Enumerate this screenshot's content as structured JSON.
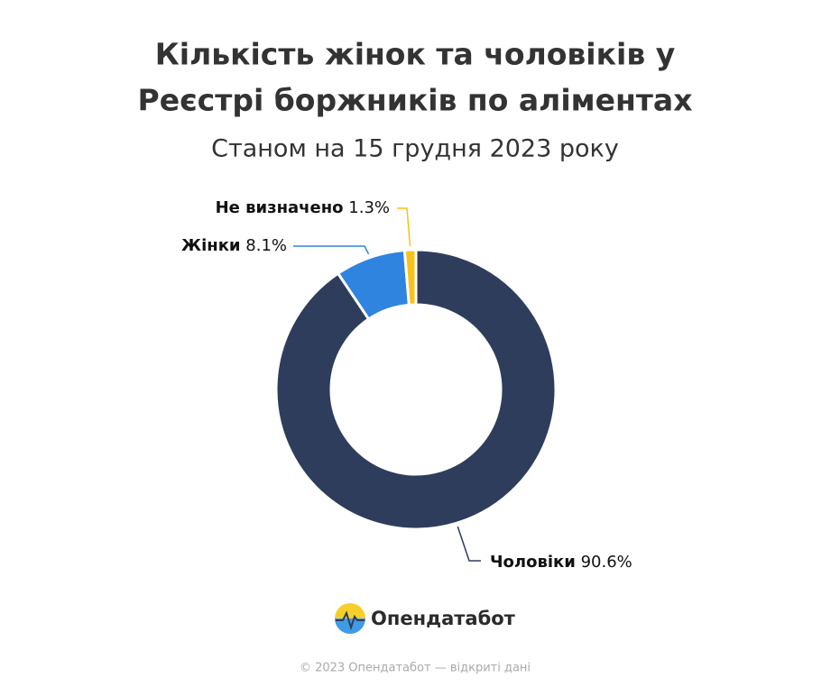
{
  "chart_data": {
    "type": "pie",
    "title": [
      "Кількість жінок та чоловіків у",
      "Реєстрі боржників по аліментах"
    ],
    "subtitle": "Станом на 15 грудня 2023 року",
    "categories": [
      "Чоловіки",
      "Жінки",
      "Не визначено"
    ],
    "values": [
      90.6,
      8.1,
      1.3
    ],
    "value_labels": [
      "90.6%",
      "8.1%",
      "1.3%"
    ],
    "colors": [
      "#2e3d5c",
      "#2f84df",
      "#f7c21a"
    ],
    "donut": true
  },
  "logo": "Опендатабот",
  "footer": "© 2023 Опендатабот — відкриті дані"
}
